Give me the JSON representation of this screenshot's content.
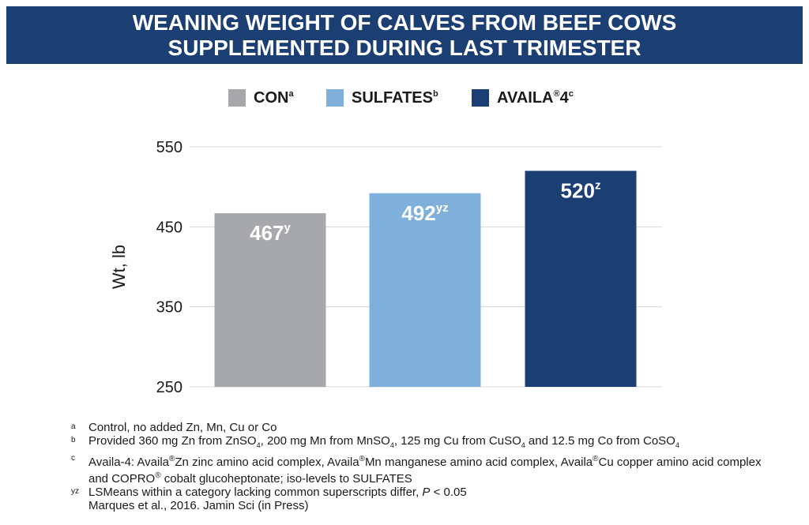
{
  "title": {
    "line1": "WEANING WEIGHT OF CALVES FROM BEEF COWS",
    "line2": "SUPPLEMENTED DURING LAST TRIMESTER"
  },
  "colors": {
    "banner": "#1c3f73",
    "con": "#a6a8ab",
    "sulfates": "#7fb0dc",
    "availa": "#1c3f73",
    "grid": "#d9d9d9"
  },
  "legend": [
    {
      "label": "CON",
      "sup": "a",
      "color": "#a6a8ab"
    },
    {
      "label": "SULFATES",
      "sup": "b",
      "color": "#7fb0dc"
    },
    {
      "label": "AVAILA",
      "reg": "®",
      "suffix": "4",
      "sup": "c",
      "color": "#1c3f73"
    }
  ],
  "chart_data": {
    "type": "bar",
    "categories": [
      "CON",
      "SULFATES",
      "AVAILA®4"
    ],
    "values": [
      467,
      492,
      520
    ],
    "data_labels": [
      {
        "value": "467",
        "sup": "y"
      },
      {
        "value": "492",
        "sup": "yz"
      },
      {
        "value": "520",
        "sup": "z"
      }
    ],
    "colors": [
      "#a6a8ab",
      "#7fb0dc",
      "#1c3f73"
    ],
    "ylabel": "Wt, lb",
    "ylim": [
      250,
      550
    ],
    "yticks": [
      250,
      350,
      450,
      550
    ],
    "grid": true,
    "legend_position": "top"
  },
  "footnotes": [
    {
      "mark": "a",
      "parts": [
        {
          "t": "Control, no added Zn, Mn, Cu or Co"
        }
      ]
    },
    {
      "mark": "b",
      "parts": [
        {
          "t": "Provided 360 mg Zn from ZnSO"
        },
        {
          "t": "4",
          "sub": true
        },
        {
          "t": ", 200 mg Mn from MnSO"
        },
        {
          "t": "4",
          "sub": true
        },
        {
          "t": ", 125 mg Cu from CuSO"
        },
        {
          "t": "4",
          "sub": true
        },
        {
          "t": " and 12.5 mg Co from CoSO"
        },
        {
          "t": "4",
          "sub": true
        }
      ]
    },
    {
      "mark": "c",
      "parts": [
        {
          "t": "Availa-4: Availa"
        },
        {
          "t": "®",
          "sup": true
        },
        {
          "t": "Zn zinc amino acid complex, Availa"
        },
        {
          "t": "®",
          "sup": true
        },
        {
          "t": "Mn manganese amino acid complex, Availa"
        },
        {
          "t": "®",
          "sup": true
        },
        {
          "t": "Cu copper amino acid complex and COPRO"
        },
        {
          "t": "®",
          "sup": true
        },
        {
          "t": " cobalt glucoheptonate; iso-levels to SULFATES"
        }
      ]
    },
    {
      "mark": "yz",
      "parts": [
        {
          "t": "LSMeans within a category lacking common superscripts differ, "
        },
        {
          "t": "P",
          "em": true
        },
        {
          "t": " < 0.05"
        }
      ]
    },
    {
      "mark": "",
      "parts": [
        {
          "t": "Marques et al., 2016. Jamin Sci (in Press)"
        }
      ]
    }
  ]
}
